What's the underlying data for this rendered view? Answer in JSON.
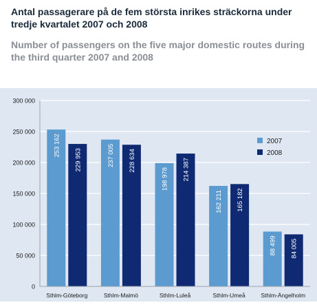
{
  "header": {
    "title": "Antal passagerare på de fem största inrikes sträckorna under tredje kvartalet 2007 och 2008",
    "subtitle": "Number of passengers on the five major domestic routes during the third quarter 2007 and 2008"
  },
  "colors": {
    "panel_bg": "#dfe8f2",
    "series_2007": "#5b9bd0",
    "series_2008": "#0f2a72",
    "gridline": "#ffffff",
    "text": "#1a1a1a"
  },
  "chart_data": {
    "type": "bar",
    "title": "Antal passagerare på de fem största inrikes sträckorna under tredje kvartalet 2007 och 2008",
    "subtitle": "Number of passengers on the five major domestic routes during the third quarter 2007 and 2008",
    "xlabel": "",
    "ylabel": "",
    "categories": [
      "Sthlm-Göteborg",
      "Sthlm-Malmö",
      "Sthlm-Luleå",
      "Sthlm-Umeå",
      "Sthlm-Ängelholm"
    ],
    "series": [
      {
        "name": "2007",
        "values": [
          253162,
          237005,
          198978,
          162211,
          88499
        ],
        "labels": [
          "253 162",
          "237 005",
          "198 978",
          "162 211",
          "88 499"
        ]
      },
      {
        "name": "2008",
        "values": [
          229953,
          228634,
          214387,
          165182,
          84005
        ],
        "labels": [
          "229 953",
          "228 634",
          "214 387",
          "165 182",
          "84 005"
        ]
      }
    ],
    "ylim": [
      0,
      300000
    ],
    "yticks": [
      0,
      50000,
      100000,
      150000,
      200000,
      250000,
      300000
    ],
    "ytick_labels": [
      "0",
      "50 000",
      "100 000",
      "150 000",
      "200 000",
      "250 000",
      "300 000"
    ],
    "grid": true,
    "legend": "right"
  }
}
